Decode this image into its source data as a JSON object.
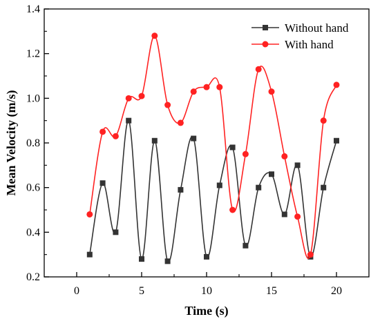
{
  "chart_data": {
    "type": "line",
    "xlabel": "Time (s)",
    "ylabel": "Mean Velocity (m/s)",
    "xlim": [
      -2.5,
      22.5
    ],
    "ylim": [
      0.2,
      1.4
    ],
    "xticks": [
      0,
      5,
      10,
      15,
      20
    ],
    "yticks": [
      0.2,
      0.4,
      0.6,
      0.8,
      1.0,
      1.2,
      1.4
    ],
    "ytick_labels": [
      "0.2",
      "0.4",
      "0.6",
      "0.8",
      "1.0",
      "1.2",
      "1.4"
    ],
    "legend_position": "top-right",
    "smooth": true,
    "series": [
      {
        "name": "Without hand",
        "color": "#333333",
        "marker": "square",
        "x": [
          1,
          2,
          3,
          4,
          5,
          6,
          7,
          8,
          9,
          10,
          11,
          12,
          13,
          14,
          15,
          16,
          17,
          18,
          19,
          20
        ],
        "values": [
          0.3,
          0.62,
          0.4,
          0.9,
          0.28,
          0.81,
          0.27,
          0.59,
          0.82,
          0.29,
          0.61,
          0.78,
          0.34,
          0.6,
          0.66,
          0.48,
          0.7,
          0.29,
          0.6,
          0.81
        ]
      },
      {
        "name": "With hand",
        "color": "#ff2222",
        "marker": "circle",
        "x": [
          1,
          2,
          3,
          4,
          5,
          6,
          7,
          8,
          9,
          10,
          11,
          12,
          13,
          14,
          15,
          16,
          17,
          18,
          19,
          20
        ],
        "values": [
          0.48,
          0.85,
          0.83,
          1.0,
          1.01,
          1.28,
          0.97,
          0.89,
          1.03,
          1.05,
          1.05,
          0.5,
          0.75,
          1.13,
          1.03,
          0.74,
          0.47,
          0.3,
          0.9,
          1.06
        ]
      }
    ]
  }
}
